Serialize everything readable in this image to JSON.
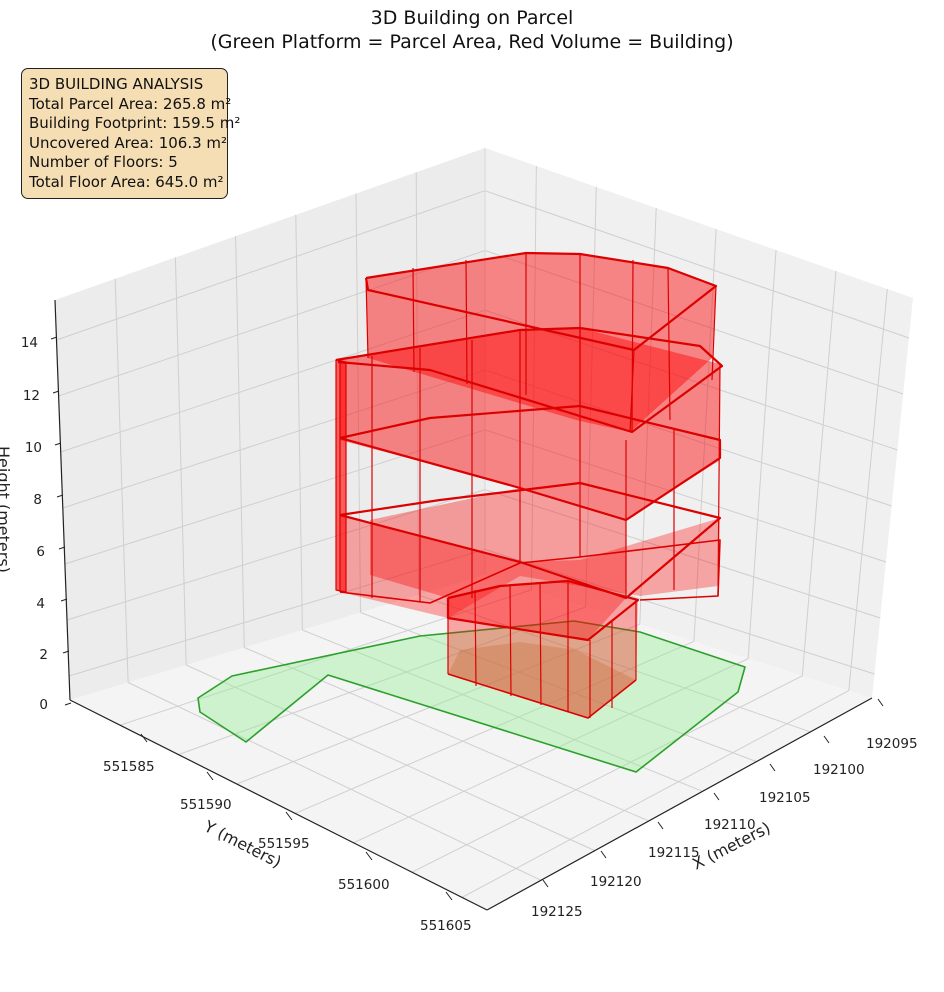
{
  "title": {
    "line1": "3D Building on Parcel",
    "line2": "(Green Platform = Parcel Area, Red Volume = Building)"
  },
  "infobox": {
    "heading": "3D BUILDING ANALYSIS",
    "lines": [
      "Total Parcel Area: 265.8 m²",
      "Building Footprint: 159.5 m²",
      "Uncovered Area: 106.3 m²",
      "Number of Floors: 5",
      "Total Floor Area: 645.0 m²"
    ]
  },
  "colors": {
    "parcel_fill": "#90ee90",
    "parcel_edge": "#2ca02c",
    "building_fill": "#ff0000",
    "building_edge": "#dd0000",
    "pane": "#f2f2f2",
    "grid": "#cfcfcf"
  },
  "chart_data": {
    "type": "3d-surface",
    "xlabel": "X (meters)",
    "ylabel": "Y (meters)",
    "zlabel": "Height (meters)",
    "xticks": [
      "192095",
      "192100",
      "192105",
      "192110",
      "192115",
      "192120",
      "192125"
    ],
    "yticks": [
      "551585",
      "551590",
      "551595",
      "551600",
      "551605"
    ],
    "zticks": [
      "0",
      "2",
      "4",
      "6",
      "8",
      "10",
      "12",
      "14"
    ],
    "summary": {
      "total_parcel_area_m2": 265.8,
      "building_footprint_m2": 159.5,
      "uncovered_area_m2": 106.3,
      "floors": 5,
      "total_floor_area_m2": 645.0
    }
  }
}
